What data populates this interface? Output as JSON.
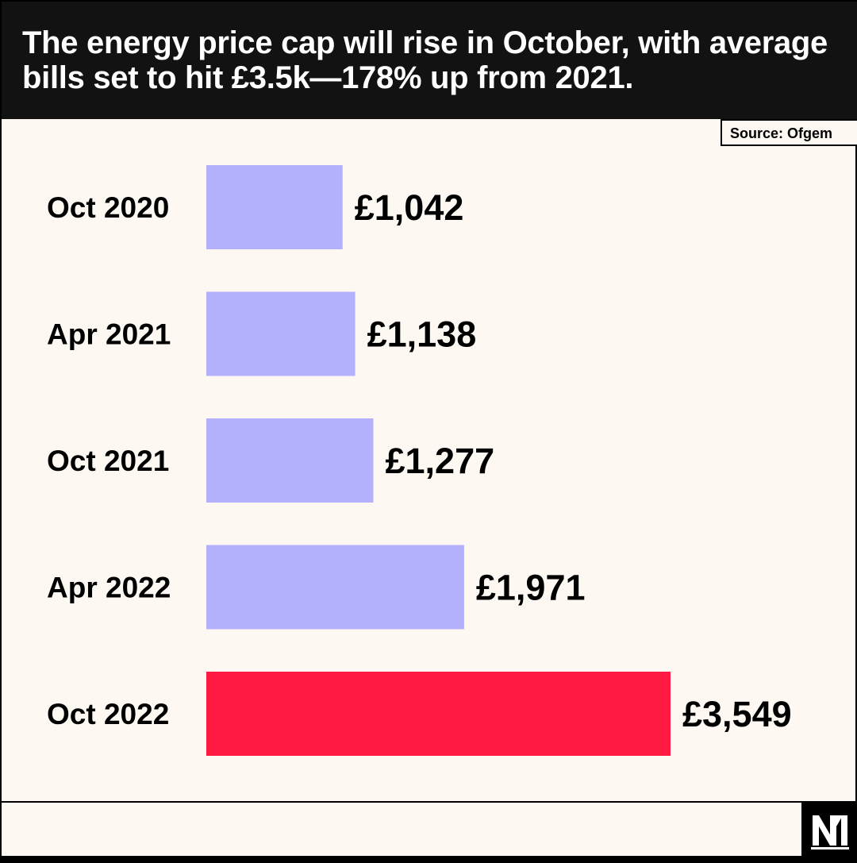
{
  "header": {
    "title": "The energy price cap will rise in October, with average bills set to hit £3.5k—178% up from 2021."
  },
  "source": "Source: Ofgem",
  "colors": {
    "header_bg": "#121212",
    "background": "#fdf8f2",
    "bar_default": "#b3b0fc",
    "bar_highlight": "#ff1a44"
  },
  "logo_icon": "publisher-logo-icon",
  "chart_data": {
    "type": "bar",
    "orientation": "horizontal",
    "title": "The energy price cap will rise in October, with average bills set to hit £3.5k—178% up from 2021.",
    "categories": [
      "Oct 2020",
      "Apr 2021",
      "Oct 2021",
      "Apr 2022",
      "Oct 2022"
    ],
    "values": [
      1042,
      1138,
      1277,
      1971,
      3549
    ],
    "value_labels": [
      "£1,042",
      "£1,138",
      "£1,277",
      "£1,971",
      "£3,549"
    ],
    "highlight_index": 4,
    "xlim": [
      0,
      3549
    ],
    "grid": false,
    "legend": "none"
  }
}
